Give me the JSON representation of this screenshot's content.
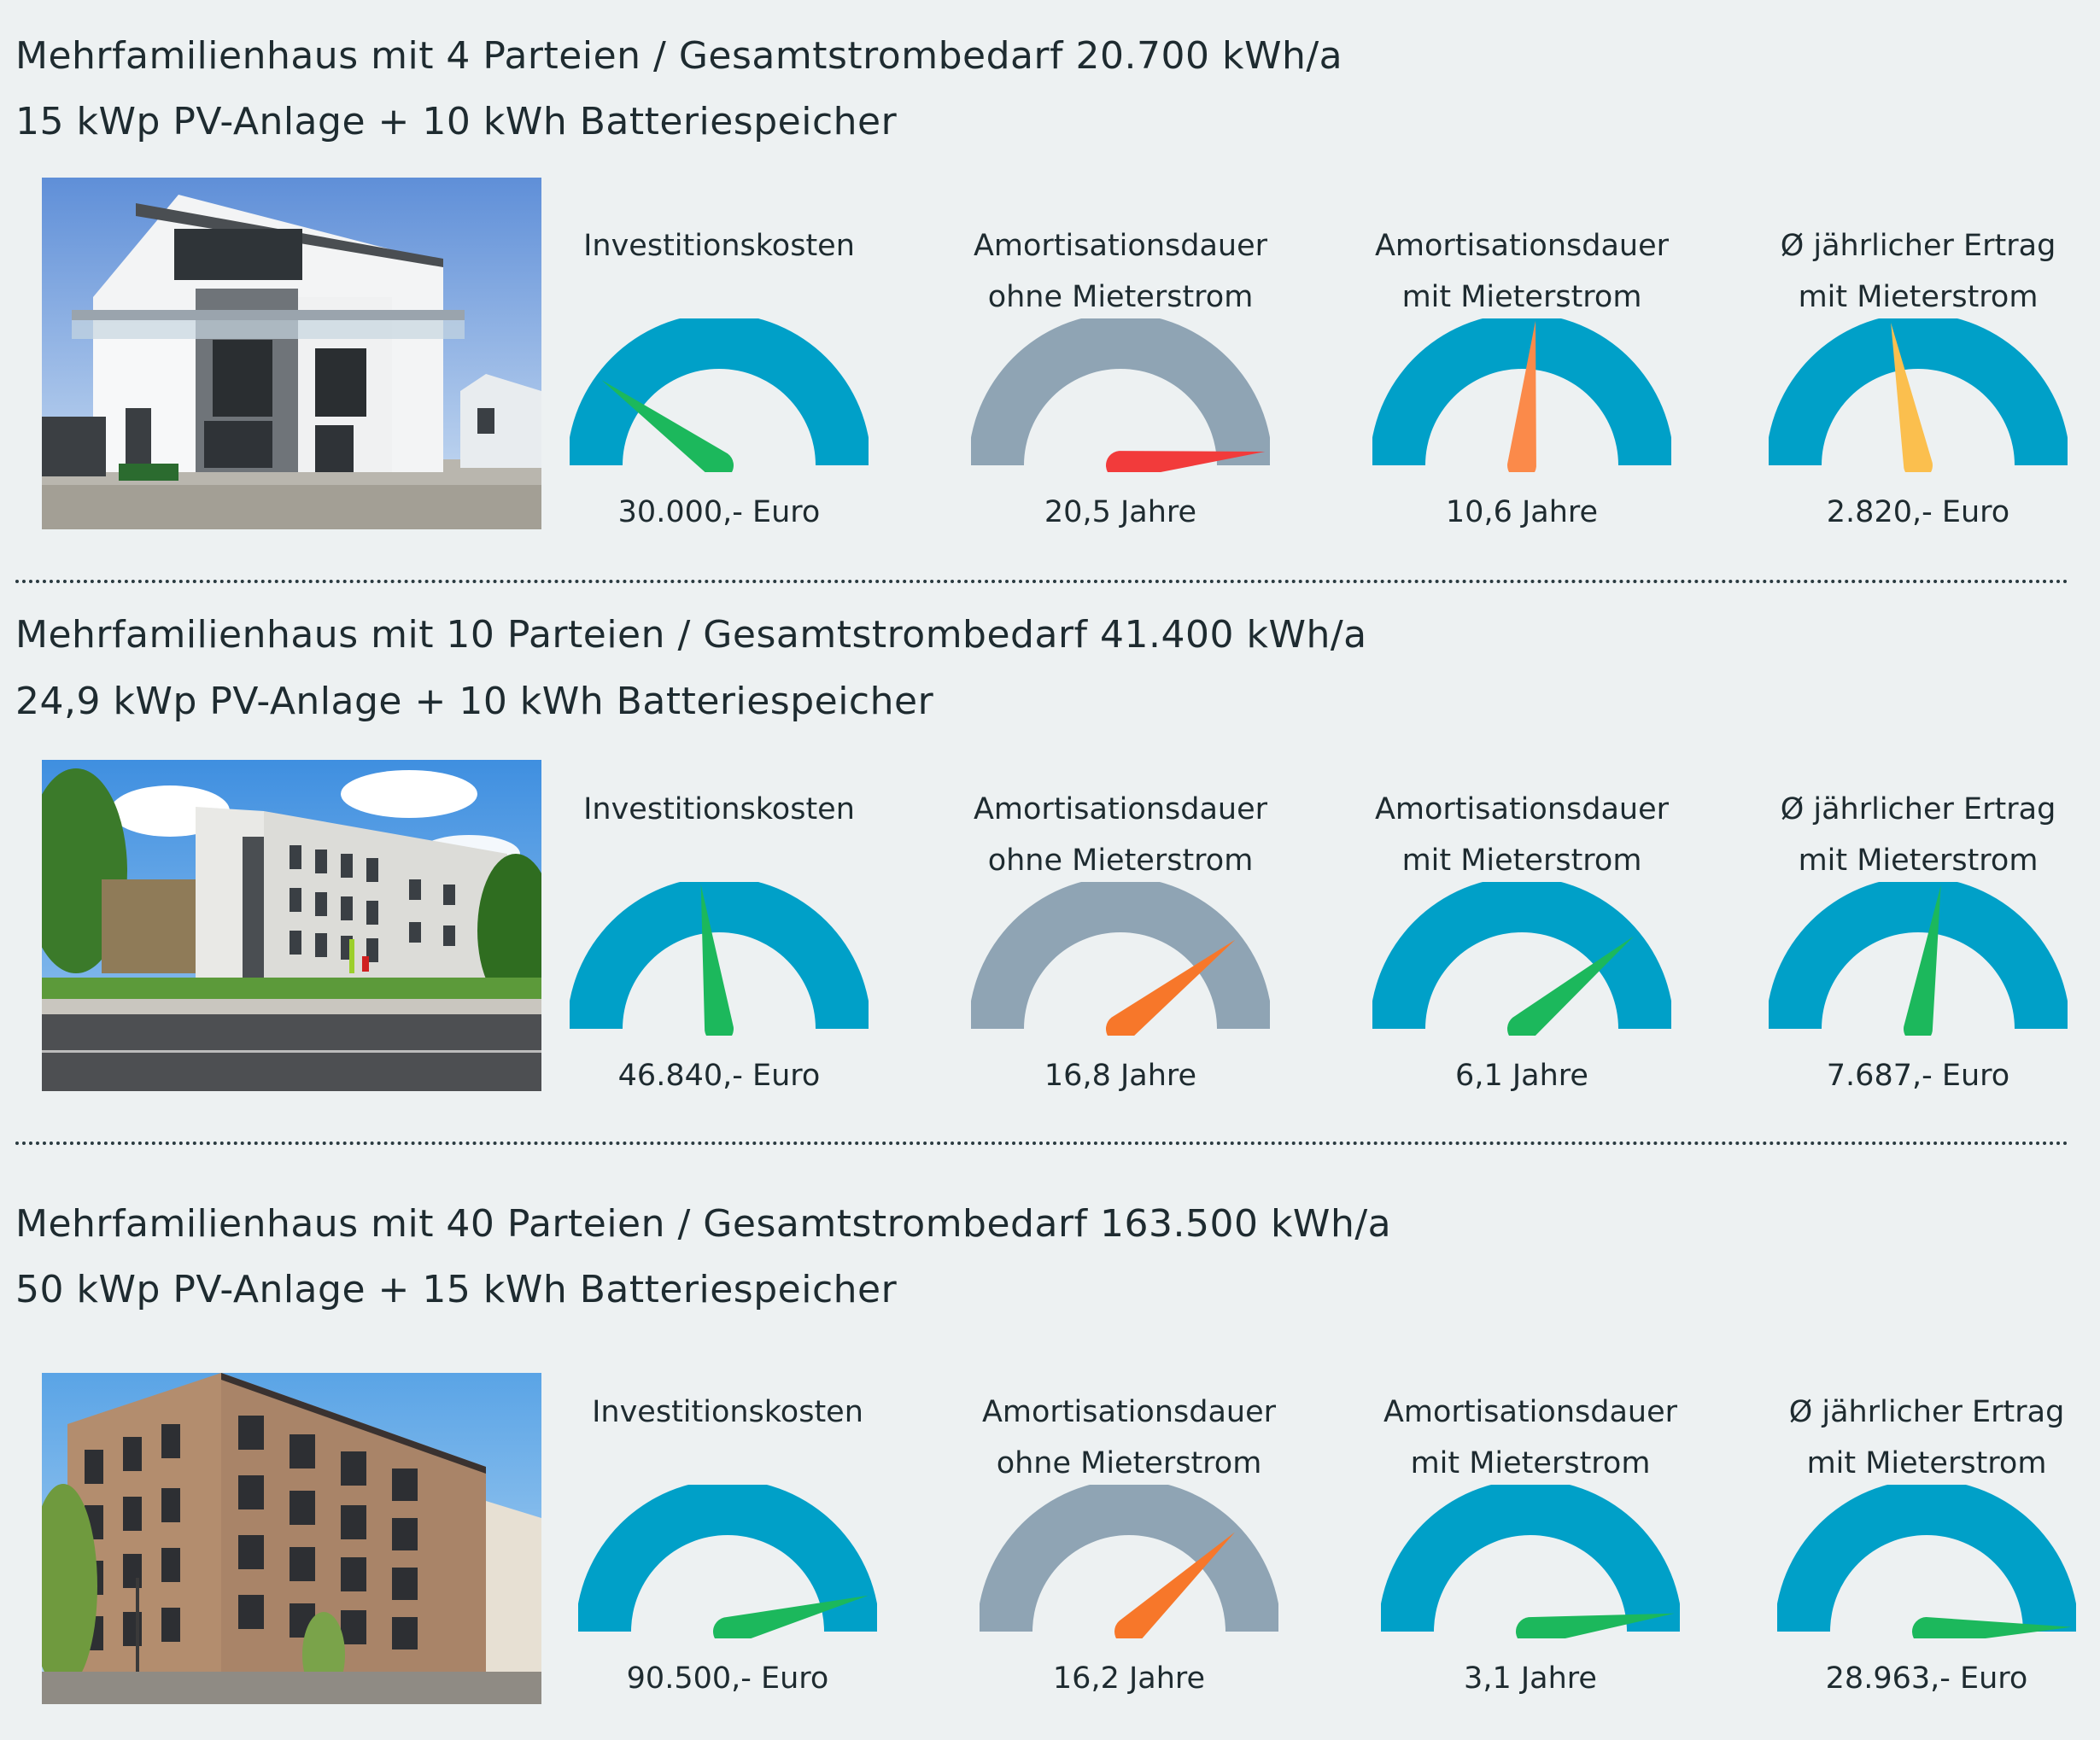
{
  "colors": {
    "blue": "#00a0c8",
    "gray": "#8fa4b4",
    "green": "#1cb85c",
    "orange": "#fb8a4a",
    "yellow": "#fbbf4e",
    "red": "#f23b3b",
    "orangeDark": "#f7772a"
  },
  "sections": [
    {
      "title1": "Mehrfamilienhaus mit 4 Parteien / Gesamtstrombedarf 20.700 kWh/a",
      "title2": "15 kWp PV-Anlage + 10 kWh Batteriespeicher",
      "photo": "single-family townhouse photo",
      "gauges": [
        {
          "label1": "Investitionskosten",
          "label2": "",
          "value": "30.000,- Euro",
          "needle": 0.2,
          "arc": "blue",
          "needleColor": "green"
        },
        {
          "label1": "Amortisationsdauer",
          "label2": "ohne Mieterstrom",
          "value": "20,5 Jahre",
          "needle": 0.97,
          "arc": "gray",
          "needleColor": "red"
        },
        {
          "label1": "Amortisationsdauer",
          "label2": "mit Mieterstrom",
          "value": "10,6 Jahre",
          "needle": 0.53,
          "arc": "blue",
          "needleColor": "orange"
        },
        {
          "label1": "Ø jährlicher Ertrag",
          "label2": "mit Mieterstrom",
          "value": "2.820,- Euro",
          "needle": 0.44,
          "arc": "blue",
          "needleColor": "yellow"
        }
      ]
    },
    {
      "title1": "Mehrfamilienhaus mit 10 Parteien / Gesamtstrombedarf 41.400 kWh/a",
      "title2": "24,9 kWp PV-Anlage + 10 kWh Batteriespeicher",
      "photo": "modern apartment block photo",
      "gauges": [
        {
          "label1": "Investitionskosten",
          "label2": "",
          "value": "46.840,- Euro",
          "needle": 0.46,
          "arc": "blue",
          "needleColor": "green"
        },
        {
          "label1": "Amortisationsdauer",
          "label2": "ohne Mieterstrom",
          "value": "16,8 Jahre",
          "needle": 0.79,
          "arc": "gray",
          "needleColor": "orangeDark"
        },
        {
          "label1": "Amortisationsdauer",
          "label2": "mit Mieterstrom",
          "value": "6,1 Jahre",
          "needle": 0.78,
          "arc": "blue",
          "needleColor": "green"
        },
        {
          "label1": "Ø jährlicher Ertrag",
          "label2": "mit Mieterstrom",
          "value": "7.687,- Euro",
          "needle": 0.55,
          "arc": "blue",
          "needleColor": "green"
        }
      ]
    },
    {
      "title1": "Mehrfamilienhaus mit 40 Parteien / Gesamtstrombedarf 163.500 kWh/a",
      "title2": "50 kWp PV-Anlage + 15 kWh Batteriespeicher",
      "photo": "large residential building photo",
      "gauges": [
        {
          "label1": "Investitionskosten",
          "label2": "",
          "value": "90.500,- Euro",
          "needle": 0.92,
          "arc": "blue",
          "needleColor": "green"
        },
        {
          "label1": "Amortisationsdauer",
          "label2": "ohne Mieterstrom",
          "value": "16,2 Jahre",
          "needle": 0.76,
          "arc": "gray",
          "needleColor": "orangeDark"
        },
        {
          "label1": "Amortisationsdauer",
          "label2": "mit Mieterstrom",
          "value": "3,1 Jahre",
          "needle": 0.96,
          "arc": "blue",
          "needleColor": "green"
        },
        {
          "label1": "Ø jährlicher Ertrag",
          "label2": "mit Mieterstrom",
          "value": "28.963,- Euro",
          "needle": 0.99,
          "arc": "blue",
          "needleColor": "green"
        }
      ]
    }
  ]
}
